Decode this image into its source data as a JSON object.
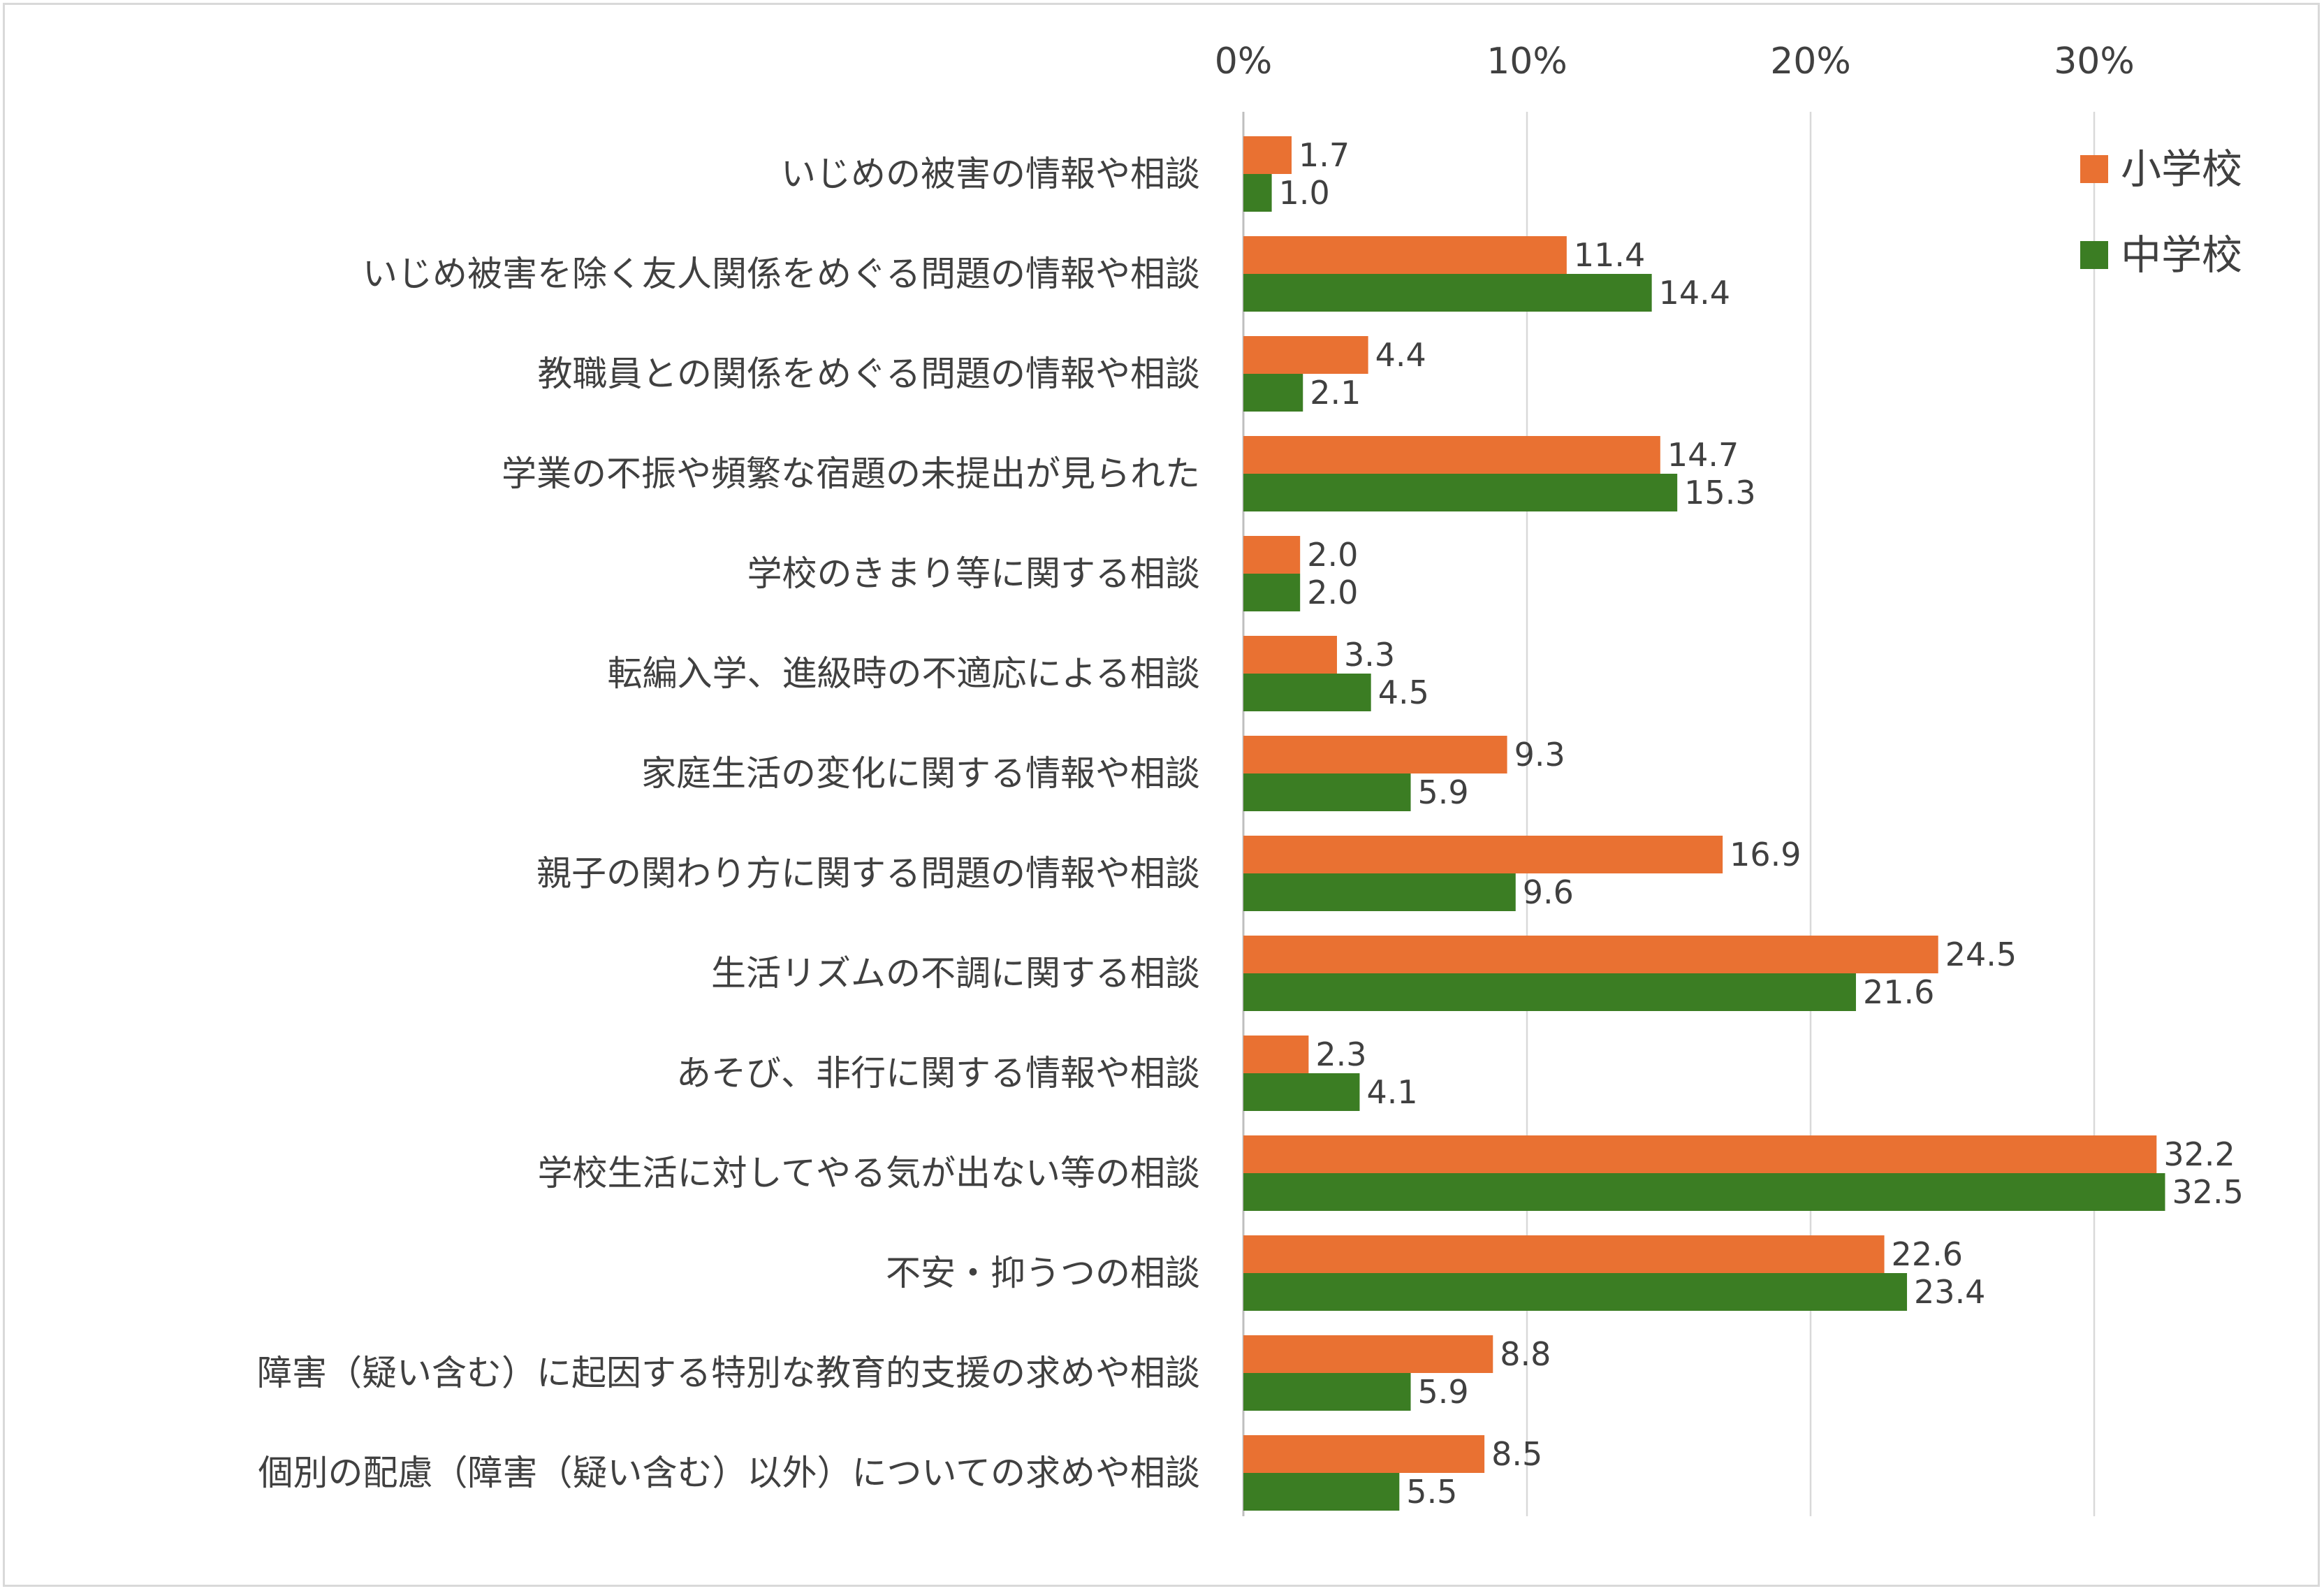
{
  "chart_data": {
    "type": "bar",
    "orientation": "horizontal",
    "categories": [
      "いじめの被害の情報や相談",
      "いじめ被害を除く友人関係をめぐる問題の情報や相談",
      "教職員との関係をめぐる問題の情報や相談",
      "学業の不振や頻繁な宿題の未提出が見られた",
      "学校のきまり等に関する相談",
      "転編入学、進級時の不適応による相談",
      "家庭生活の変化に関する情報や相談",
      "親子の関わり方に関する問題の情報や相談",
      "生活リズムの不調に関する相談",
      "あそび、非行に関する情報や相談",
      "学校生活に対してやる気が出ない等の相談",
      "不安・抑うつの相談",
      "障害（疑い含む）に起因する特別な教育的支援の求めや相談",
      "個別の配慮（障害（疑い含む）以外）についての求めや相談"
    ],
    "series": [
      {
        "name": "小学校",
        "color": "#E97132",
        "values": [
          1.7,
          11.4,
          4.4,
          14.7,
          2.0,
          3.3,
          9.3,
          16.9,
          24.5,
          2.3,
          32.2,
          22.6,
          8.8,
          8.5
        ]
      },
      {
        "name": "中学校",
        "color": "#3B7D23",
        "values": [
          1.0,
          14.4,
          2.1,
          15.3,
          2.0,
          4.5,
          5.9,
          9.6,
          21.6,
          4.1,
          32.5,
          23.4,
          5.9,
          5.5
        ]
      }
    ],
    "data_labels": [
      [
        "1.7",
        "11.4",
        "4.4",
        "14.7",
        "2.0",
        "3.3",
        "9.3",
        "16.9",
        "24.5",
        "2.3",
        "32.2",
        "22.6",
        "8.8",
        "8.5"
      ],
      [
        "1.0",
        "14.4",
        "2.1",
        "15.3",
        "2.0",
        "4.5",
        "5.9",
        "9.6",
        "21.6",
        "4.1",
        "32.5",
        "23.4",
        "5.9",
        "5.5"
      ]
    ],
    "x_ticks": [
      0,
      10,
      20,
      30
    ],
    "x_tick_labels": [
      "0%",
      "10%",
      "20%",
      "30%"
    ],
    "xlim": [
      0,
      35
    ],
    "axis_position": "top",
    "grid": true,
    "gridline_color": "#d9d9d9",
    "legend": "top-right",
    "title": "",
    "xlabel": "",
    "ylabel": ""
  }
}
